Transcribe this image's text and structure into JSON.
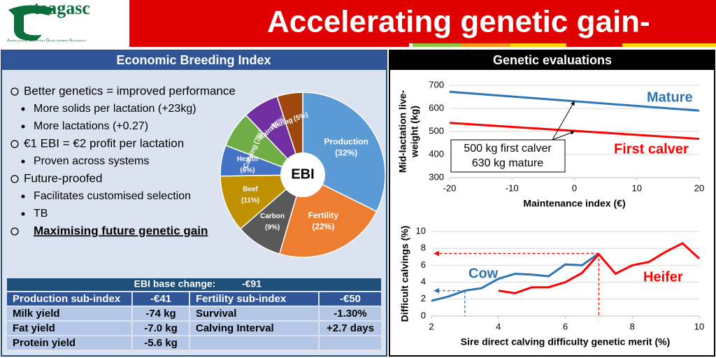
{
  "header": {
    "logo": "teagasc",
    "tagline": "Agriculture and Food Development Authority",
    "title": "Accelerating genetic gain-"
  },
  "left": {
    "title": "Economic Breeding Index",
    "bullets": [
      {
        "text": "Better genetics = improved performance",
        "subs": [
          "More solids per lactation (+23kg)",
          "More lactations (+0.27)"
        ]
      },
      {
        "text": "€1 EBI = €2 profit per lactation",
        "subs": [
          "Proven across systems"
        ]
      },
      {
        "text": "Future-proofed",
        "subs": [
          "Facilitates customised selection",
          "TB"
        ]
      },
      {
        "text": "Maximising future genetic gain",
        "emphasis": true,
        "subs": []
      }
    ]
  },
  "table": {
    "header": [
      "EBI base change:",
      "-€91"
    ],
    "rows": [
      [
        "Production sub-index",
        "-€41",
        "Fertility sub-index",
        "-€50"
      ],
      [
        "Milk yield",
        "-74 kg",
        "Survival",
        "-1.30%"
      ],
      [
        "Fat yield",
        "-7.0 kg",
        "Calving Interval",
        "+2.7 days"
      ],
      [
        "Protein yield",
        "-5.6 kg"
      ]
    ]
  },
  "right": {
    "title": "Genetic evaluations"
  },
  "chart_data": [
    {
      "type": "pie",
      "center_label": "EBI",
      "categories": [
        "Production",
        "Fertility",
        "Carbon",
        "Beef",
        "Health",
        "Calving",
        "Maint",
        "Manag"
      ],
      "values": [
        32,
        22,
        9,
        11,
        6,
        7,
        7,
        5
      ],
      "value_labels": [
        "(32%)",
        "(22%)",
        "(9%)",
        "(11%)",
        "(6%)",
        "(7%)",
        "(7%)",
        "(5%)"
      ],
      "colors": [
        "#5b9bd5",
        "#ed7d31",
        "#595959",
        "#bf9000",
        "#4472c4",
        "#70ad47",
        "#7030a0",
        "#9e480e"
      ]
    },
    {
      "type": "line",
      "xlabel": "Maintenance index (€)",
      "ylabel": [
        "Mid-lactation live-",
        "weight (kg)"
      ],
      "xlim": [
        -20,
        20
      ],
      "xticks": [
        -20,
        -10,
        0,
        10,
        20
      ],
      "ylim": [
        300,
        700
      ],
      "yticks": [
        300,
        400,
        500,
        600,
        700
      ],
      "grid": true,
      "series": [
        {
          "name": "Mature",
          "color": "#2e75b6",
          "x": [
            -20,
            20
          ],
          "values": [
            672,
            590
          ]
        },
        {
          "name": "First calver",
          "color": "#ff0000",
          "x": [
            -20,
            20
          ],
          "values": [
            537,
            468
          ]
        }
      ],
      "annotation": {
        "lines": [
          "500 kg first calver",
          "630 kg mature"
        ],
        "x": 0,
        "points": [
          630,
          500
        ]
      }
    },
    {
      "type": "line",
      "xlabel": "Sire direct calving difficulty genetic merit (%)",
      "ylabel": [
        "Difficult calvings (%)"
      ],
      "xlim": [
        2,
        10
      ],
      "xticks": [
        2,
        4,
        6,
        8,
        10
      ],
      "ylim": [
        0,
        10
      ],
      "yticks": [
        0,
        2,
        4,
        6,
        8,
        10
      ],
      "grid": true,
      "series": [
        {
          "name": "Cow",
          "color": "#2e75b6",
          "x": [
            2,
            2.5,
            3,
            3.5,
            4,
            4.5,
            5,
            5.5,
            6,
            6.5,
            7
          ],
          "values": [
            1.8,
            2.3,
            3.0,
            3.3,
            4.4,
            5.0,
            4.9,
            4.7,
            6.1,
            6.0,
            7.4
          ]
        },
        {
          "name": "Heifer",
          "color": "#ff0000",
          "x": [
            4,
            4.5,
            5,
            5.5,
            6,
            6.5,
            7,
            7.5,
            8,
            8.5,
            9,
            9.5,
            10
          ],
          "values": [
            3.0,
            2.7,
            3.4,
            3.4,
            4.0,
            5.1,
            7.3,
            5.0,
            6.0,
            6.4,
            7.6,
            8.6,
            6.8
          ]
        }
      ],
      "guides": [
        {
          "x": 7,
          "y": 7.4,
          "color": "#ff0000"
        },
        {
          "x": 3,
          "y": 3,
          "color": "#2e75b6"
        }
      ]
    }
  ]
}
